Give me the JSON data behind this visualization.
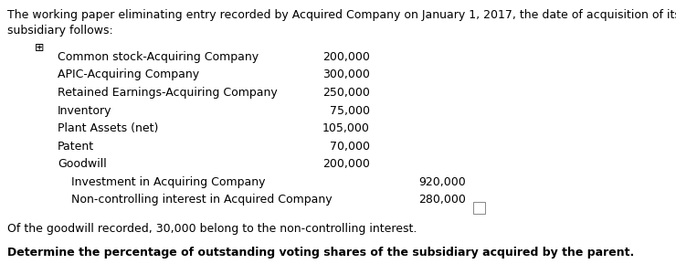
{
  "bg_color": "#ffffff",
  "text_color": "#000000",
  "header_line1": "The working paper eliminating entry recorded by Acquired Company on January 1, 2017, the date of acquisition of its",
  "header_line2": "subsidiary follows:",
  "header_fontsize": 9.0,
  "icon_symbol": "⊞",
  "debit_entries": [
    {
      "label": "Common stock-Acquiring Company",
      "col1": "200,000"
    },
    {
      "label": "APIC-Acquiring Company",
      "col1": "300,000"
    },
    {
      "label": "Retained Earnings-Acquiring Company",
      "col1": "250,000"
    },
    {
      "label": "Inventory",
      "col1": "75,000"
    },
    {
      "label": "Plant Assets (net)",
      "col1": "105,000"
    },
    {
      "label": "Patent",
      "col1": "70,000"
    },
    {
      "label": "Goodwill",
      "col1": "200,000"
    }
  ],
  "credit_entries": [
    {
      "label": "Investment in Acquiring Company",
      "col2": "920,000"
    },
    {
      "label": "Non-controlling interest in Acquired Company",
      "col2": "280,000"
    }
  ],
  "footnote": "Of the goodwill recorded, 30,000 belong to the non-controlling interest.",
  "question": "Determine the percentage of outstanding voting shares of the subsidiary acquired by the parent.",
  "entry_fontsize": 9.0,
  "footnote_fontsize": 9.0,
  "question_fontsize": 9.0
}
